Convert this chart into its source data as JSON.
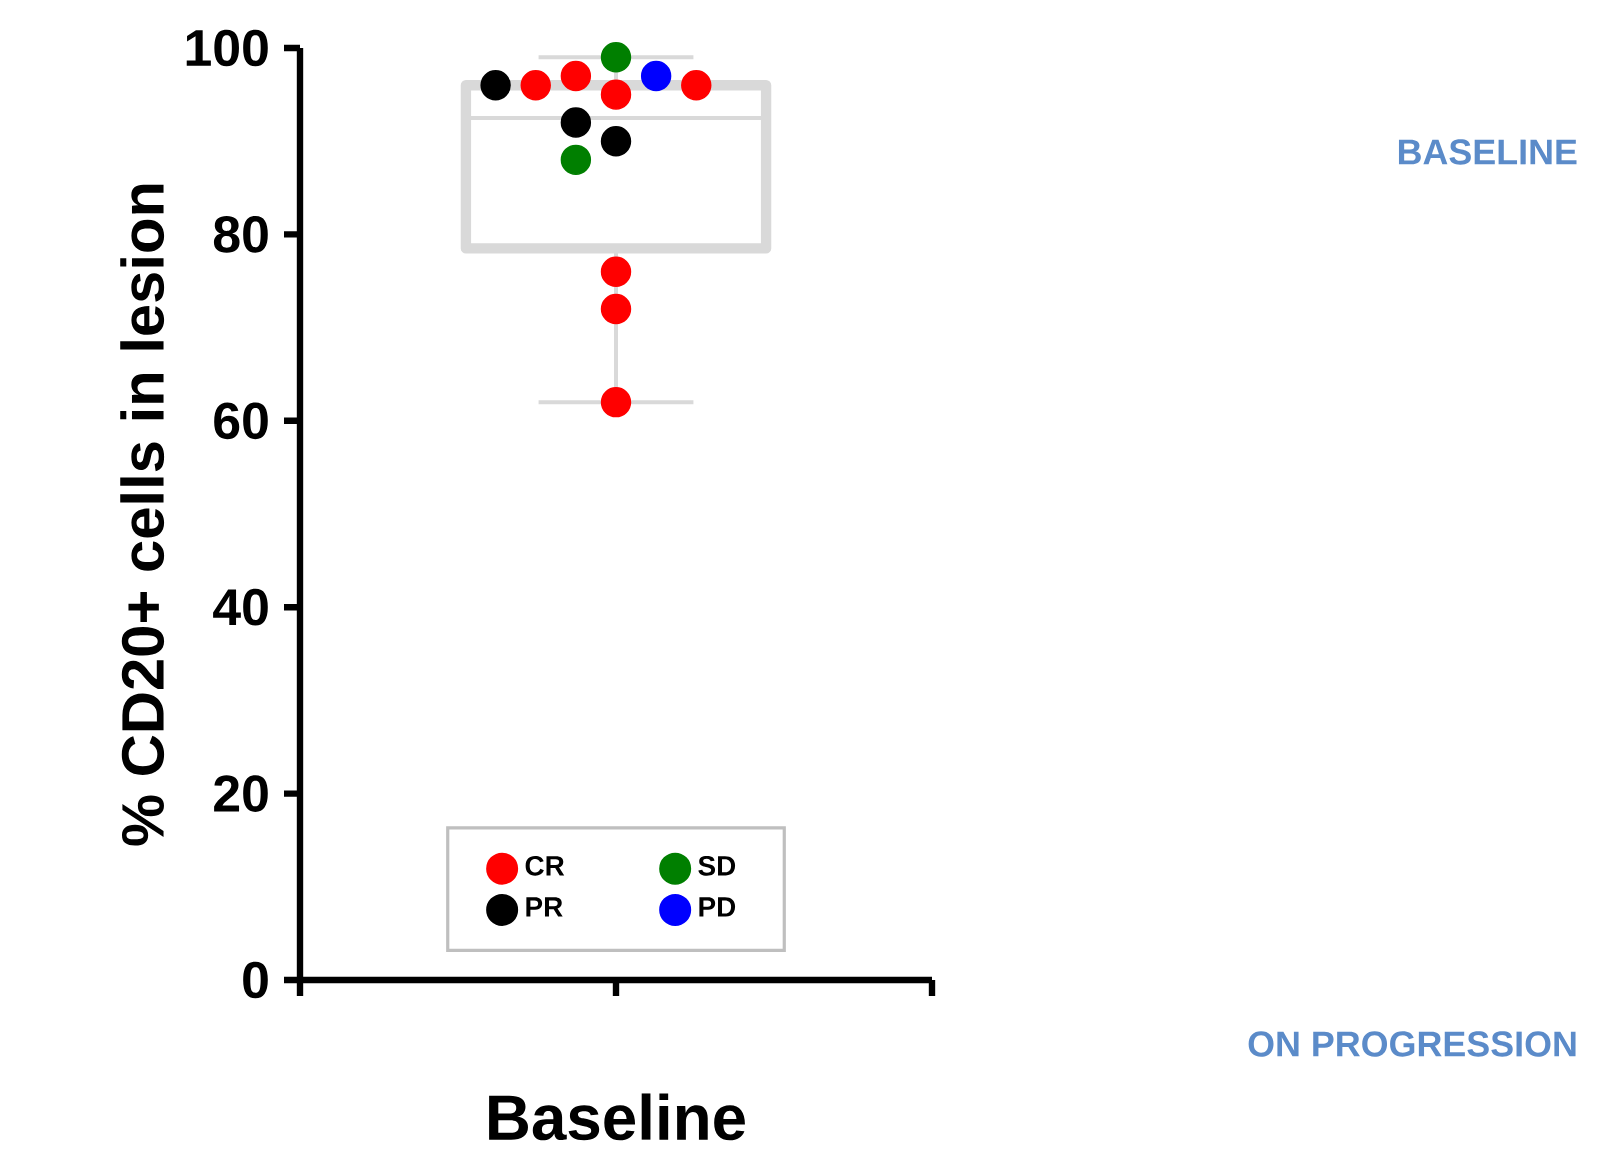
{
  "chart_data": {
    "type": "box",
    "ylabel": "% CD20+ cells in lesion",
    "xlabel": "Baseline",
    "categories": [
      null
    ],
    "boxes": [
      {
        "low": 62,
        "q1": 78.5,
        "median": 92.5,
        "q3": 96,
        "high": 99
      }
    ],
    "color": "#d9d9d9",
    "ylim": [
      0,
      100
    ],
    "yticks": [
      0,
      20,
      40,
      60,
      80,
      100
    ],
    "tick_labels": "y",
    "grid": false,
    "legend": "bottom",
    "series": [
      {
        "type": "scatter",
        "name": "CR",
        "color": "#ff0000",
        "x": [
          null,
          null,
          null,
          null,
          null,
          null,
          null
        ],
        "values": [
          97,
          95,
          96,
          76,
          72,
          62,
          96
        ]
      },
      {
        "type": "scatter",
        "name": "SD",
        "color": "#007f00",
        "x": [
          null,
          null
        ],
        "values": [
          99,
          88
        ]
      },
      {
        "type": "scatter",
        "name": "PR",
        "color": "#000000",
        "x": [
          null,
          null,
          null
        ],
        "values": [
          96,
          92,
          90
        ]
      },
      {
        "type": "scatter",
        "name": "PD",
        "color": "#0000ff",
        "x": [
          null
        ],
        "values": [
          97
        ]
      }
    ],
    "annotations": [
      "BASELINE",
      "ON PROGRESSION"
    ]
  }
}
